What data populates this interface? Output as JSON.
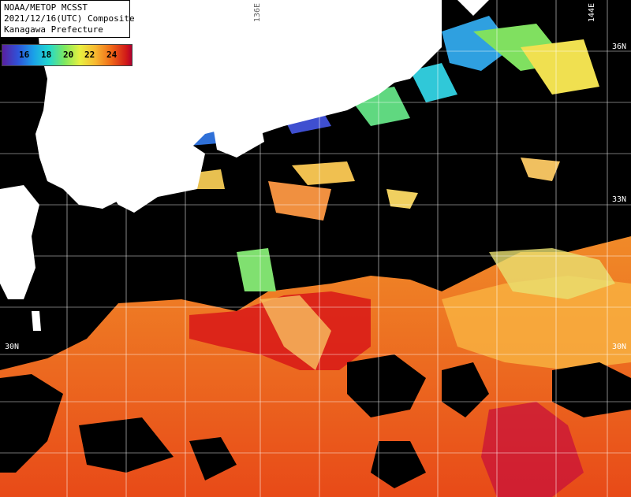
{
  "title": {
    "line1": "NOAA/METOP MCSST",
    "line2": "2021/12/16(UTC) Composite",
    "line3": "Kanagawa Prefecture"
  },
  "colorbar": {
    "ticks": [
      "16",
      "18",
      "20",
      "22",
      "24"
    ],
    "colors": [
      "#5a1fa0",
      "#2f52d8",
      "#1aa0e8",
      "#22d8d0",
      "#7de860",
      "#e8f040",
      "#f8b830",
      "#f06a18",
      "#d01818",
      "#b00030"
    ]
  },
  "grid_labels": {
    "lon_136": "136E",
    "lon_144": "144E",
    "lat_36": "36N",
    "lat_33": "33N",
    "lat_30_left": "30N",
    "lat_30_right": "30N"
  },
  "colors": {
    "land": "#ffffff",
    "cloud": "#000000",
    "grid": "#ffffff",
    "warm": "#e84818",
    "hot": "#d81818",
    "mild": "#f8a030",
    "cool": "#e8e060",
    "cold": "#30c8e0"
  }
}
